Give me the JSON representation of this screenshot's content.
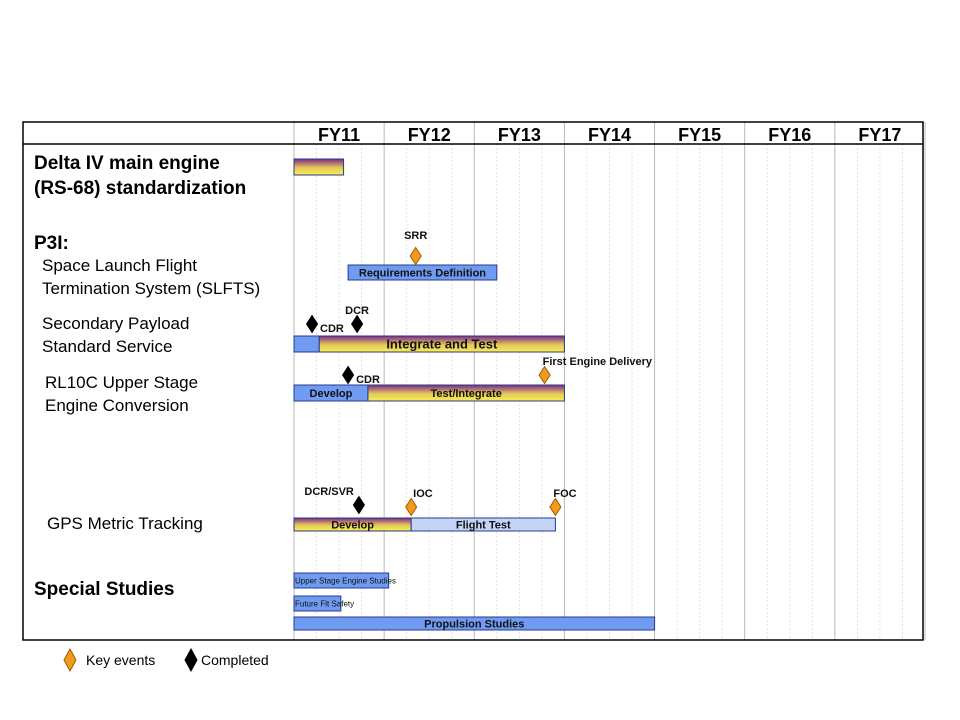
{
  "colors": {
    "blue": "#6f9cf2",
    "blue_light": "#c4d4f6",
    "gradient_top": "#7a2a88",
    "gradient_bottom": "#f8f050",
    "key_event": "#f29a1a",
    "completed": "#000000"
  },
  "chart_data": {
    "type": "gantt",
    "years": [
      "FY11",
      "FY12",
      "FY13",
      "FY14",
      "FY15",
      "FY16",
      "FY17"
    ],
    "x_domain": [
      2011,
      2018
    ],
    "rows": [
      {
        "id": "rs68",
        "label_lines": [
          "Delta IV main engine",
          "(RS-68) standardization"
        ],
        "bars": [
          {
            "start": 2011.0,
            "end": 2011.55,
            "label": "",
            "style": "gradient"
          }
        ],
        "milestones": []
      },
      {
        "id": "p3i",
        "label_lines": [
          "P3I:"
        ],
        "bars": [],
        "milestones": []
      },
      {
        "id": "slfts",
        "label_lines": [
          "Space Launch Flight",
          "Termination System (SLFTS)"
        ],
        "bars": [
          {
            "start": 2011.6,
            "end": 2013.25,
            "label": "Requirements Definition",
            "style": "blue"
          }
        ],
        "milestones": [
          {
            "x": 2012.35,
            "label": "SRR",
            "kind": "key"
          }
        ]
      },
      {
        "id": "spss",
        "label_lines": [
          "Secondary Payload",
          "Standard Service"
        ],
        "bars": [
          {
            "start": 2011.0,
            "end": 2011.28,
            "label": "",
            "style": "blue"
          },
          {
            "start": 2011.28,
            "end": 2014.0,
            "label": "Integrate and Test",
            "style": "gradient"
          }
        ],
        "milestones": [
          {
            "x": 2011.2,
            "label": "CDR",
            "kind": "completed"
          },
          {
            "x": 2011.7,
            "label": "DCR",
            "kind": "completed"
          }
        ]
      },
      {
        "id": "rl10c",
        "label_lines": [
          "RL10C Upper Stage",
          "Engine Conversion"
        ],
        "bars": [
          {
            "start": 2011.0,
            "end": 2011.82,
            "label": "Develop",
            "style": "blue"
          },
          {
            "start": 2011.82,
            "end": 2014.0,
            "label": "Test/Integrate",
            "style": "gradient"
          }
        ],
        "milestones": [
          {
            "x": 2011.6,
            "label": "CDR",
            "kind": "completed"
          },
          {
            "x": 2013.78,
            "label": "First Engine Delivery",
            "kind": "key"
          }
        ]
      },
      {
        "id": "gps",
        "label_lines": [
          "GPS Metric Tracking"
        ],
        "bars": [
          {
            "start": 2011.0,
            "end": 2012.3,
            "label": "Develop",
            "style": "gradient"
          },
          {
            "start": 2012.3,
            "end": 2013.9,
            "label": "Flight Test",
            "style": "blue_light"
          }
        ],
        "milestones": [
          {
            "x": 2011.72,
            "label": "DCR/SVR",
            "kind": "completed"
          },
          {
            "x": 2012.3,
            "label": "IOC",
            "kind": "key"
          },
          {
            "x": 2013.9,
            "label": "FOC",
            "kind": "key"
          }
        ]
      },
      {
        "id": "special",
        "label_lines": [
          "Special Studies"
        ],
        "bars": [
          {
            "start": 2011.0,
            "end": 2012.05,
            "label": "Upper Stage Engine Studies",
            "style": "blue"
          },
          {
            "start": 2011.0,
            "end": 2011.52,
            "label": "Future Flt Safety",
            "style": "blue"
          },
          {
            "start": 2011.0,
            "end": 2015.0,
            "label": "Propulsion Studies",
            "style": "blue"
          }
        ],
        "milestones": []
      }
    ],
    "legend": [
      {
        "kind": "key",
        "label": "Key events"
      },
      {
        "kind": "completed",
        "label": "Completed"
      }
    ]
  }
}
